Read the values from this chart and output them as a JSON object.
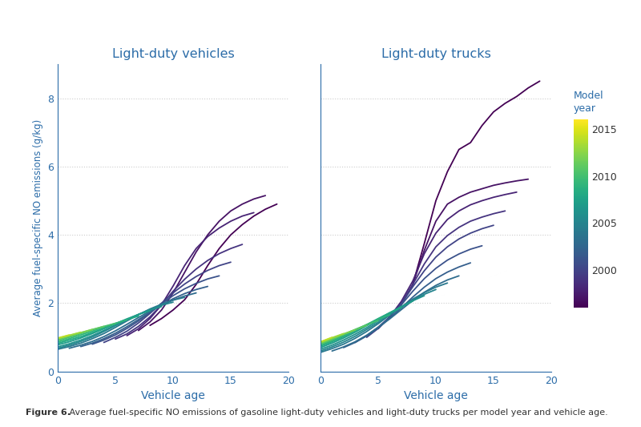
{
  "title_left": "Light-duty vehicles",
  "title_right": "Light-duty trucks",
  "xlabel": "Vehicle age",
  "ylabel": "Average fuel-specific NO emissions (g/kg)",
  "colorbar_title_line1": "Model",
  "colorbar_title_line2": "year",
  "colorbar_ticks": [
    2000,
    2005,
    2010,
    2015
  ],
  "ylim": [
    0,
    9
  ],
  "xlim": [
    0,
    20
  ],
  "yticks": [
    0,
    2,
    4,
    6,
    8
  ],
  "xticks": [
    0,
    5,
    10,
    15,
    20
  ],
  "year_min": 1996,
  "year_max": 2016,
  "caption_bold": "Figure 6.",
  "caption_normal": " Average fuel-specific NO emissions of gasoline light-duty vehicles and light-duty trucks per model year and vehicle age.",
  "background_color": "#ffffff",
  "title_color": "#2b6ca8",
  "axis_color": "#2b6ca8",
  "tick_color": "#2b6ca8",
  "text_color": "#333333",
  "grid_color": "#cccccc",
  "light_duty_vehicles": {
    "1996": {
      "ages": [
        8,
        9,
        10,
        11,
        12,
        13,
        14,
        15,
        16,
        17,
        18,
        19
      ],
      "values": [
        1.35,
        1.55,
        1.8,
        2.1,
        2.55,
        3.1,
        3.6,
        4.0,
        4.3,
        4.55,
        4.75,
        4.9
      ]
    },
    "1997": {
      "ages": [
        7,
        8,
        9,
        10,
        11,
        12,
        13,
        14,
        15,
        16,
        17,
        18
      ],
      "values": [
        1.2,
        1.45,
        1.8,
        2.3,
        2.9,
        3.5,
        4.0,
        4.4,
        4.7,
        4.9,
        5.05,
        5.15
      ]
    },
    "1998": {
      "ages": [
        6,
        7,
        8,
        9,
        10,
        11,
        12,
        13,
        14,
        15,
        16,
        17
      ],
      "values": [
        1.05,
        1.25,
        1.55,
        1.95,
        2.5,
        3.1,
        3.6,
        3.95,
        4.2,
        4.4,
        4.55,
        4.65
      ]
    },
    "1999": {
      "ages": [
        5,
        6,
        7,
        8,
        9,
        10,
        11,
        12,
        13,
        14,
        15,
        16
      ],
      "values": [
        0.95,
        1.1,
        1.32,
        1.6,
        1.95,
        2.35,
        2.7,
        3.0,
        3.25,
        3.45,
        3.6,
        3.72
      ]
    },
    "2000": {
      "ages": [
        4,
        5,
        6,
        7,
        8,
        9,
        10,
        11,
        12,
        13,
        14,
        15
      ],
      "values": [
        0.85,
        1.0,
        1.18,
        1.42,
        1.7,
        2.0,
        2.3,
        2.56,
        2.78,
        2.96,
        3.1,
        3.2
      ]
    },
    "2001": {
      "ages": [
        3,
        4,
        5,
        6,
        7,
        8,
        9,
        10,
        11,
        12,
        13,
        14
      ],
      "values": [
        0.8,
        0.92,
        1.07,
        1.26,
        1.48,
        1.73,
        1.98,
        2.22,
        2.42,
        2.58,
        2.71,
        2.8
      ]
    },
    "2002": {
      "ages": [
        2,
        3,
        4,
        5,
        6,
        7,
        8,
        9,
        10,
        11,
        12,
        13
      ],
      "values": [
        0.73,
        0.83,
        0.96,
        1.12,
        1.31,
        1.52,
        1.74,
        1.95,
        2.13,
        2.28,
        2.4,
        2.49
      ]
    },
    "2003": {
      "ages": [
        1,
        2,
        3,
        4,
        5,
        6,
        7,
        8,
        9,
        10,
        11,
        12
      ],
      "values": [
        0.68,
        0.77,
        0.88,
        1.02,
        1.19,
        1.38,
        1.58,
        1.77,
        1.94,
        2.09,
        2.21,
        2.3
      ]
    },
    "2004": {
      "ages": [
        0,
        1,
        2,
        3,
        4,
        5,
        6,
        7,
        8,
        9,
        10,
        11
      ],
      "values": [
        0.65,
        0.73,
        0.83,
        0.96,
        1.11,
        1.29,
        1.48,
        1.66,
        1.83,
        1.97,
        2.09,
        2.17
      ]
    },
    "2005": {
      "ages": [
        0,
        1,
        2,
        3,
        4,
        5,
        6,
        7,
        8,
        9,
        10
      ],
      "values": [
        0.68,
        0.77,
        0.88,
        1.01,
        1.17,
        1.34,
        1.51,
        1.67,
        1.82,
        1.94,
        2.03
      ]
    },
    "2006": {
      "ages": [
        0,
        1,
        2,
        3,
        4,
        5,
        6,
        7,
        8,
        9
      ],
      "values": [
        0.72,
        0.81,
        0.92,
        1.05,
        1.2,
        1.36,
        1.52,
        1.67,
        1.8,
        1.9
      ]
    },
    "2007": {
      "ages": [
        0,
        1,
        2,
        3,
        4,
        5,
        6,
        7,
        8
      ],
      "values": [
        0.78,
        0.87,
        0.98,
        1.11,
        1.25,
        1.4,
        1.54,
        1.67,
        1.78
      ]
    },
    "2008": {
      "ages": [
        0,
        1,
        2,
        3,
        4,
        5,
        6,
        7
      ],
      "values": [
        0.82,
        0.92,
        1.02,
        1.14,
        1.27,
        1.4,
        1.52,
        1.62
      ]
    },
    "2009": {
      "ages": [
        0,
        1,
        2,
        3,
        4,
        5,
        6
      ],
      "values": [
        0.86,
        0.96,
        1.07,
        1.18,
        1.3,
        1.41,
        1.51
      ]
    },
    "2010": {
      "ages": [
        0,
        1,
        2,
        3,
        4,
        5
      ],
      "values": [
        0.9,
        1.0,
        1.11,
        1.22,
        1.32,
        1.41
      ]
    },
    "2011": {
      "ages": [
        0,
        1,
        2,
        3,
        4
      ],
      "values": [
        0.93,
        1.03,
        1.13,
        1.23,
        1.32
      ]
    },
    "2012": {
      "ages": [
        0,
        1,
        2,
        3
      ],
      "values": [
        0.95,
        1.05,
        1.14,
        1.23
      ]
    },
    "2013": {
      "ages": [
        0,
        1,
        2
      ],
      "values": [
        0.97,
        1.06,
        1.15
      ]
    },
    "2014": {
      "ages": [
        0,
        1
      ],
      "values": [
        0.98,
        1.07
      ]
    },
    "2015": {
      "ages": [
        0
      ],
      "values": [
        1.0
      ]
    }
  },
  "light_duty_trucks": {
    "1996": {
      "ages": [
        8,
        9,
        10,
        11,
        12,
        13,
        14,
        15,
        16,
        17,
        18,
        19
      ],
      "values": [
        2.55,
        3.75,
        5.0,
        5.85,
        6.5,
        6.7,
        7.2,
        7.6,
        7.85,
        8.05,
        8.3,
        8.5
      ]
    },
    "1997": {
      "ages": [
        7,
        8,
        9,
        10,
        11,
        12,
        13,
        14,
        15,
        16,
        17,
        18
      ],
      "values": [
        1.95,
        2.55,
        3.55,
        4.4,
        4.9,
        5.1,
        5.25,
        5.35,
        5.45,
        5.52,
        5.58,
        5.63
      ]
    },
    "1998": {
      "ages": [
        6,
        7,
        8,
        9,
        10,
        11,
        12,
        13,
        14,
        15,
        16,
        17
      ],
      "values": [
        1.6,
        2.05,
        2.65,
        3.45,
        4.05,
        4.45,
        4.7,
        4.88,
        5.0,
        5.1,
        5.18,
        5.25
      ]
    },
    "1999": {
      "ages": [
        5,
        6,
        7,
        8,
        9,
        10,
        11,
        12,
        13,
        14,
        15,
        16
      ],
      "values": [
        1.25,
        1.6,
        2.0,
        2.55,
        3.15,
        3.65,
        3.98,
        4.22,
        4.4,
        4.52,
        4.62,
        4.7
      ]
    },
    "2000": {
      "ages": [
        4,
        5,
        6,
        7,
        8,
        9,
        10,
        11,
        12,
        13,
        14,
        15
      ],
      "values": [
        1.0,
        1.26,
        1.59,
        1.98,
        2.48,
        2.95,
        3.35,
        3.65,
        3.88,
        4.05,
        4.18,
        4.28
      ]
    },
    "2001": {
      "ages": [
        3,
        4,
        5,
        6,
        7,
        8,
        9,
        10,
        11,
        12,
        13,
        14
      ],
      "values": [
        0.85,
        1.05,
        1.3,
        1.6,
        1.95,
        2.35,
        2.72,
        3.02,
        3.26,
        3.44,
        3.58,
        3.68
      ]
    },
    "2002": {
      "ages": [
        2,
        3,
        4,
        5,
        6,
        7,
        8,
        9,
        10,
        11,
        12,
        13
      ],
      "values": [
        0.7,
        0.85,
        1.04,
        1.28,
        1.56,
        1.86,
        2.18,
        2.47,
        2.72,
        2.91,
        3.06,
        3.18
      ]
    },
    "2003": {
      "ages": [
        1,
        2,
        3,
        4,
        5,
        6,
        7,
        8,
        9,
        10,
        11,
        12
      ],
      "values": [
        0.6,
        0.72,
        0.87,
        1.06,
        1.29,
        1.54,
        1.81,
        2.08,
        2.32,
        2.52,
        2.68,
        2.8
      ]
    },
    "2004": {
      "ages": [
        0,
        1,
        2,
        3,
        4,
        5,
        6,
        7,
        8,
        9,
        10,
        11
      ],
      "values": [
        0.56,
        0.67,
        0.8,
        0.97,
        1.17,
        1.4,
        1.65,
        1.89,
        2.12,
        2.31,
        2.47,
        2.59
      ]
    },
    "2005": {
      "ages": [
        0,
        1,
        2,
        3,
        4,
        5,
        6,
        7,
        8,
        9,
        10
      ],
      "values": [
        0.6,
        0.72,
        0.86,
        1.03,
        1.23,
        1.44,
        1.66,
        1.88,
        2.08,
        2.26,
        2.4
      ]
    },
    "2006": {
      "ages": [
        0,
        1,
        2,
        3,
        4,
        5,
        6,
        7,
        8,
        9
      ],
      "values": [
        0.65,
        0.77,
        0.92,
        1.09,
        1.28,
        1.49,
        1.69,
        1.89,
        2.07,
        2.22
      ]
    },
    "2007": {
      "ages": [
        0,
        1,
        2,
        3,
        4,
        5,
        6,
        7,
        8
      ],
      "values": [
        0.7,
        0.83,
        0.98,
        1.15,
        1.34,
        1.53,
        1.72,
        1.9,
        2.06
      ]
    },
    "2008": {
      "ages": [
        0,
        1,
        2,
        3,
        4,
        5,
        6,
        7
      ],
      "values": [
        0.74,
        0.87,
        1.02,
        1.19,
        1.37,
        1.55,
        1.72,
        1.87
      ]
    },
    "2009": {
      "ages": [
        0,
        1,
        2,
        3,
        4,
        5,
        6
      ],
      "values": [
        0.77,
        0.9,
        1.05,
        1.21,
        1.37,
        1.53,
        1.66
      ]
    },
    "2010": {
      "ages": [
        0,
        1,
        2,
        3,
        4,
        5
      ],
      "values": [
        0.8,
        0.93,
        1.08,
        1.23,
        1.37,
        1.49
      ]
    },
    "2011": {
      "ages": [
        0,
        1,
        2,
        3,
        4
      ],
      "values": [
        0.82,
        0.95,
        1.09,
        1.22,
        1.35
      ]
    },
    "2012": {
      "ages": [
        0,
        1,
        2,
        3
      ],
      "values": [
        0.84,
        0.97,
        1.1,
        1.22
      ]
    },
    "2013": {
      "ages": [
        0,
        1,
        2
      ],
      "values": [
        0.86,
        0.99,
        1.11
      ]
    },
    "2014": {
      "ages": [
        0,
        1
      ],
      "values": [
        0.87,
        1.0
      ]
    },
    "2015": {
      "ages": [
        0
      ],
      "values": [
        0.88
      ]
    }
  }
}
